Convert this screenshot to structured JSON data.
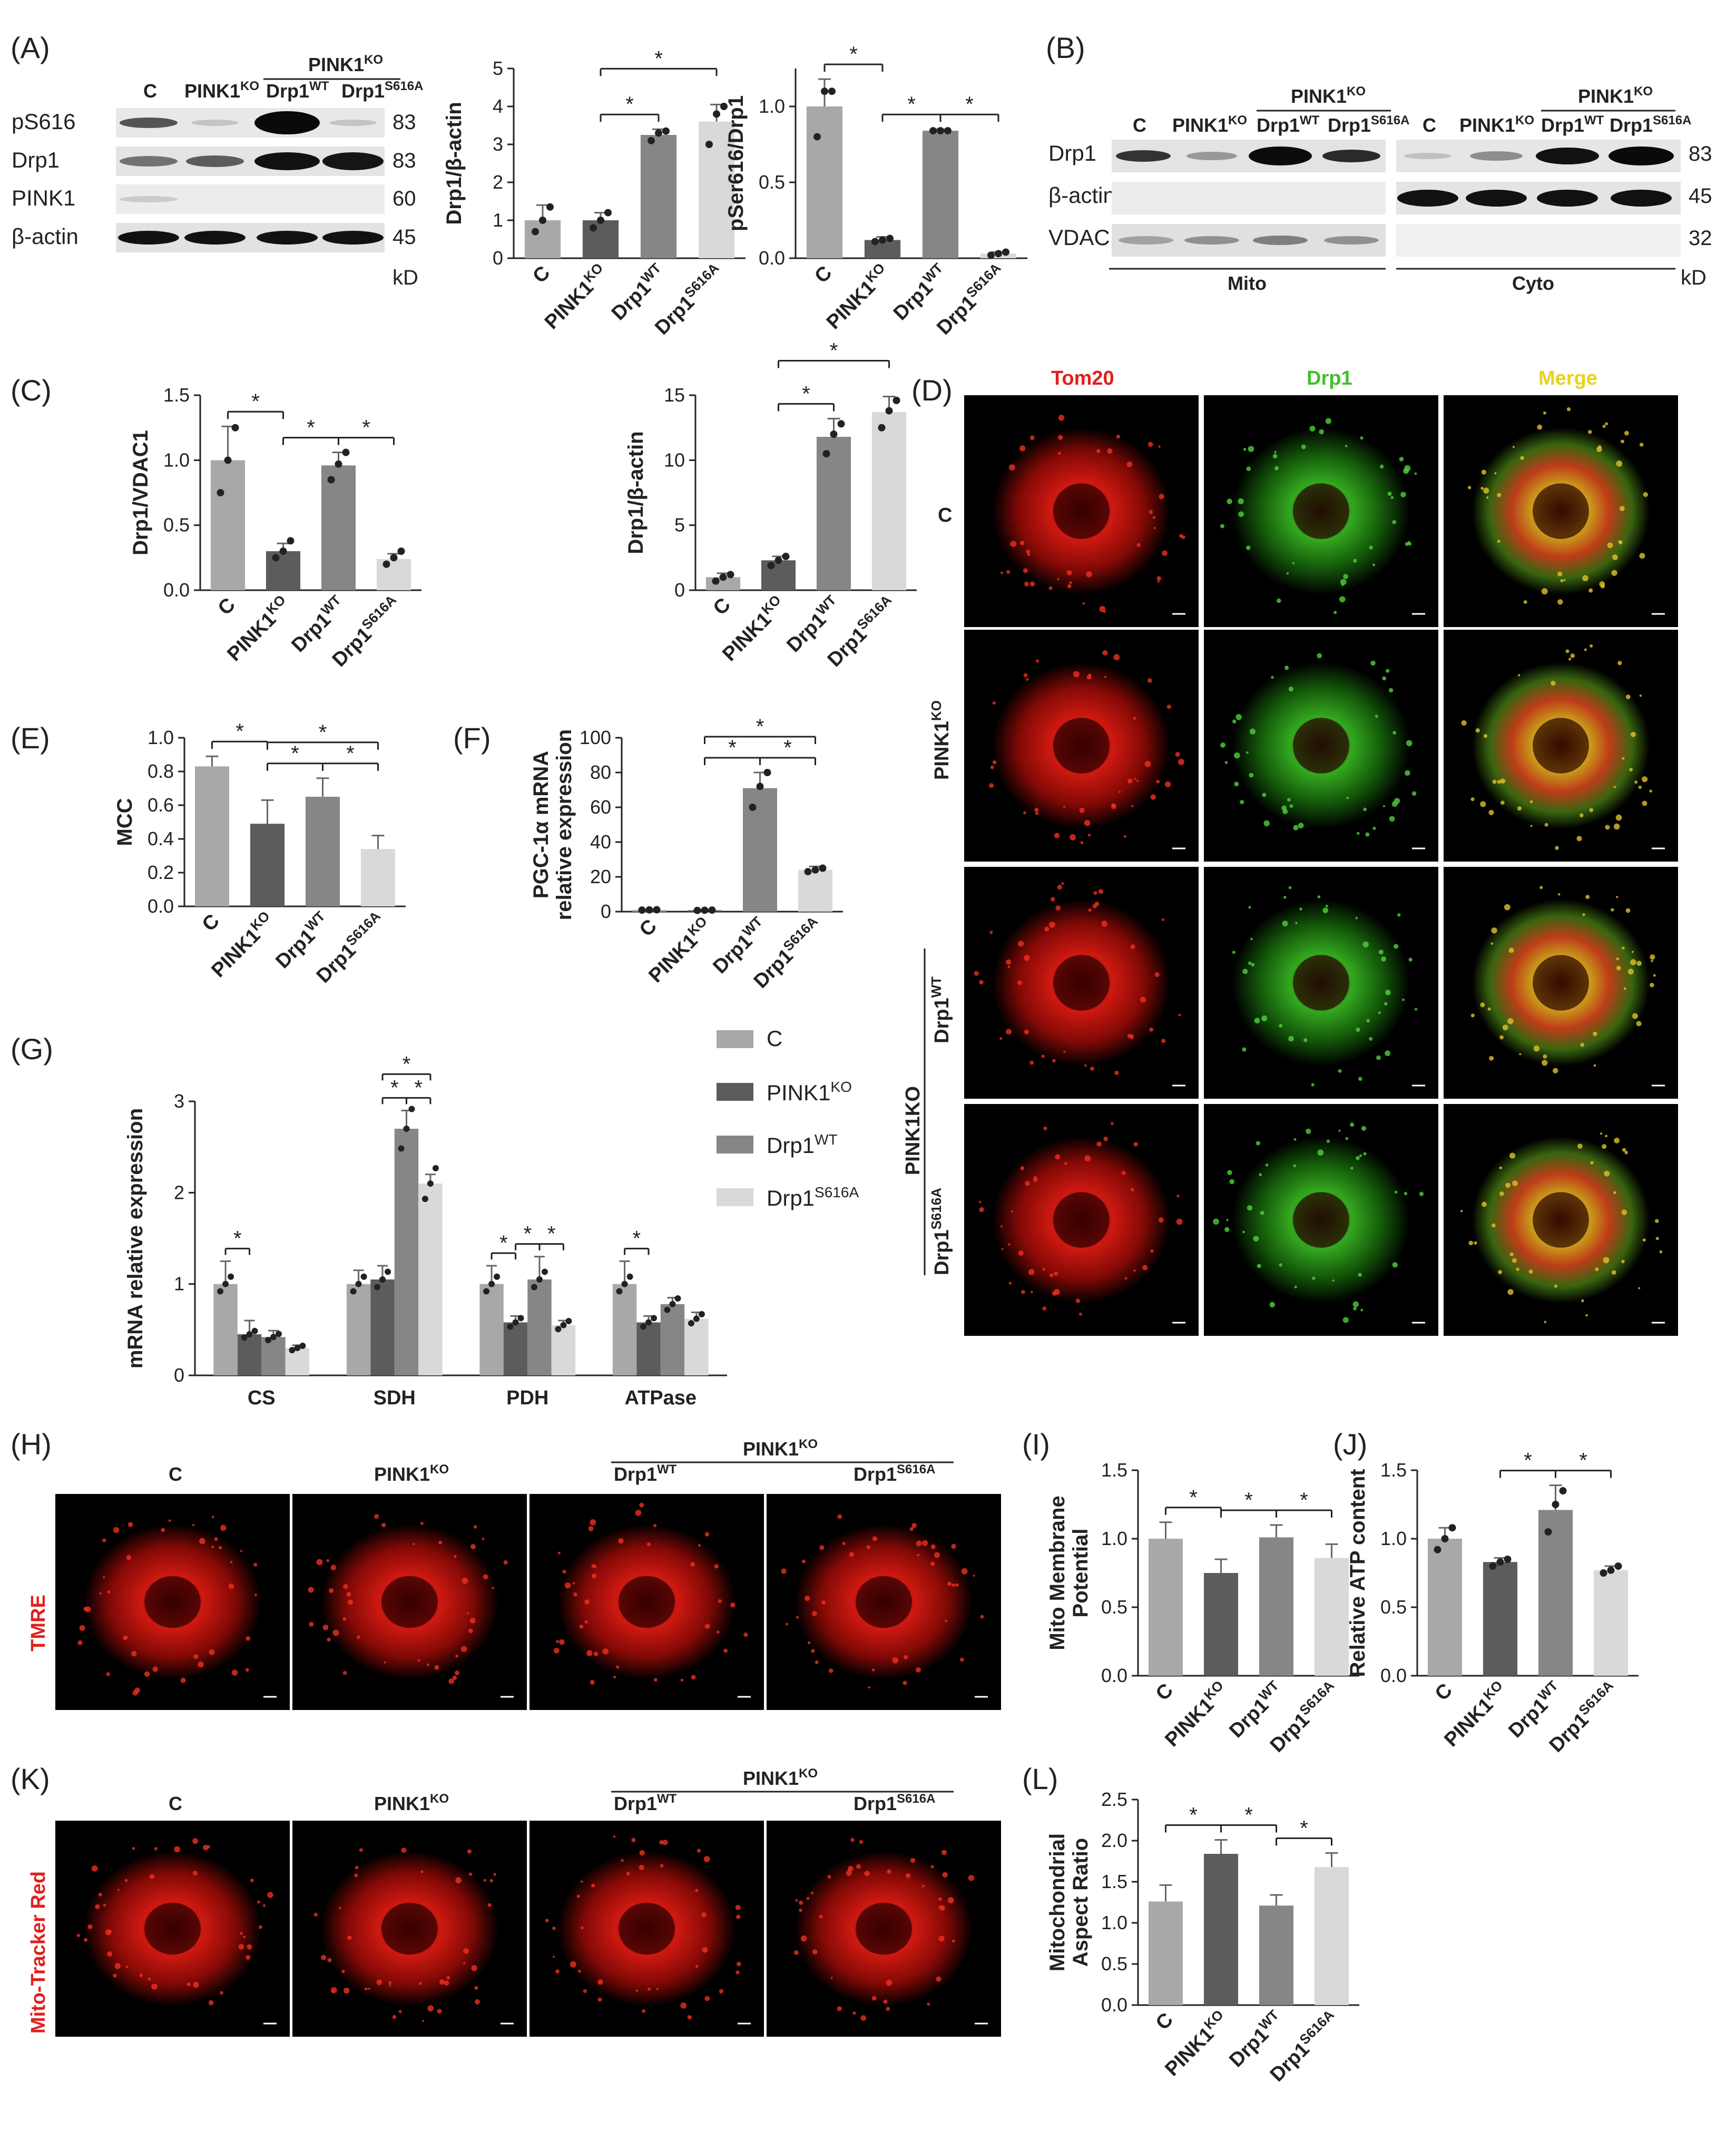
{
  "labels": {
    "A": "(A)",
    "B": "(B)",
    "C": "(C)",
    "D": "(D)",
    "E": "(E)",
    "F": "(F)",
    "G": "(G)",
    "H": "(H)",
    "I": "(I)",
    "J": "(J)",
    "K": "(K)",
    "L": "(L)"
  },
  "groups": {
    "C": "C",
    "PINK1": "PINK1",
    "KO": "KO",
    "Drp1": "Drp1",
    "WT": "WT",
    "S616A": "S616A",
    "PINK1KO": "PINK1KO",
    "Drp1WT": "Drp1WT",
    "Drp1S616A": "Drp1S616A"
  },
  "blotA": {
    "rows": [
      {
        "name": "pS616",
        "kd": "83"
      },
      {
        "name": "Drp1",
        "kd": "83"
      },
      {
        "name": "PINK1",
        "kd": "60"
      },
      {
        "name": "β-actin",
        "kd": "45"
      }
    ],
    "kd_label": "kD"
  },
  "blotB": {
    "rows": [
      {
        "name": "Drp1",
        "kd": "83"
      },
      {
        "name": "β-actin",
        "kd": "45"
      },
      {
        "name": "VDAC1",
        "kd": "32"
      }
    ],
    "fractions": [
      "Mito",
      "Cyto"
    ],
    "kd_label": "kD"
  },
  "microscopyD": {
    "columns": [
      "Tom20",
      "Drp1",
      "Merge"
    ],
    "rows": [
      "C",
      "PINK1KO",
      "Drp1WT",
      "Drp1S616A"
    ],
    "group_label": "PINK1KO"
  },
  "microscopyH": {
    "stain": "TMRE",
    "group_label": "PINK1KO",
    "columns": [
      "C",
      "PINK1KO",
      "Drp1WT",
      "Drp1S616A"
    ]
  },
  "microscopyK": {
    "stain": "Mito-Tracker Red",
    "group_label": "PINK1KO",
    "columns": [
      "C",
      "PINK1KO",
      "Drp1WT",
      "Drp1S616A"
    ]
  },
  "chart_data": [
    {
      "id": "A1",
      "type": "bar",
      "categories": [
        "C",
        "PINK1KO",
        "Drp1WT",
        "Drp1S616A"
      ],
      "values": [
        1.0,
        1.0,
        3.25,
        3.6
      ],
      "errors": [
        0.4,
        0.2,
        0.15,
        0.45
      ],
      "points": [
        [
          0.7,
          1.0,
          1.35
        ],
        [
          0.8,
          1.0,
          1.2
        ],
        [
          3.1,
          3.3,
          3.35
        ],
        [
          3.0,
          3.8,
          4.0
        ]
      ],
      "ylabel": "Drp1/β-actin",
      "ylim": [
        0,
        5
      ],
      "yticks": [
        0,
        1,
        2,
        3,
        4,
        5
      ],
      "sig": [
        [
          1,
          2
        ],
        [
          1,
          3
        ]
      ]
    },
    {
      "id": "A2",
      "type": "bar",
      "categories": [
        "C",
        "PINK1KO",
        "Drp1WT",
        "Drp1S616A"
      ],
      "values": [
        1.0,
        0.12,
        0.84,
        0.03
      ],
      "errors": [
        0.18,
        0.02,
        0.01,
        0.01
      ],
      "points": [
        [
          0.8,
          1.1,
          1.1
        ],
        [
          0.11,
          0.12,
          0.13
        ],
        [
          0.84,
          0.84,
          0.84
        ],
        [
          0.02,
          0.03,
          0.04
        ]
      ],
      "ylabel": "pSer616/Drp1",
      "ylim": [
        0,
        1.25
      ],
      "yticks": [
        0.0,
        0.5,
        1.0
      ],
      "sig": [
        [
          0,
          1
        ],
        [
          1,
          2
        ],
        [
          2,
          3
        ]
      ]
    },
    {
      "id": "C1",
      "type": "bar",
      "categories": [
        "C",
        "PINK1KO",
        "Drp1WT",
        "Drp1S616A"
      ],
      "values": [
        1.0,
        0.3,
        0.96,
        0.24
      ],
      "errors": [
        0.26,
        0.06,
        0.1,
        0.04
      ],
      "points": [
        [
          0.75,
          1.0,
          1.25
        ],
        [
          0.25,
          0.3,
          0.38
        ],
        [
          0.85,
          0.97,
          1.06
        ],
        [
          0.2,
          0.25,
          0.3
        ]
      ],
      "ylabel": "Drp1/VDAC1",
      "ylim": [
        0,
        1.5
      ],
      "yticks": [
        0.0,
        0.5,
        1.0,
        1.5
      ],
      "sig": [
        [
          0,
          1
        ],
        [
          1,
          2
        ],
        [
          2,
          3
        ]
      ]
    },
    {
      "id": "C2",
      "type": "bar",
      "categories": [
        "C",
        "PINK1KO",
        "Drp1WT",
        "Drp1S616A"
      ],
      "values": [
        1.0,
        2.3,
        11.8,
        13.7
      ],
      "errors": [
        0.3,
        0.3,
        1.4,
        1.2
      ],
      "points": [
        [
          0.7,
          1.0,
          1.2
        ],
        [
          1.9,
          2.3,
          2.6
        ],
        [
          10.5,
          12.0,
          12.8
        ],
        [
          12.5,
          13.8,
          14.6
        ]
      ],
      "ylabel": "Drp1/β-actin",
      "ylim": [
        0,
        15
      ],
      "yticks": [
        0,
        5,
        10,
        15
      ],
      "sig": [
        [
          1,
          2
        ],
        [
          1,
          3
        ]
      ]
    },
    {
      "id": "E",
      "type": "bar",
      "categories": [
        "C",
        "PINK1KO",
        "Drp1WT",
        "Drp1S616A"
      ],
      "values": [
        0.83,
        0.49,
        0.65,
        0.34
      ],
      "errors": [
        0.06,
        0.14,
        0.11,
        0.08
      ],
      "points": [],
      "ylabel": "MCC",
      "ylim": [
        0,
        1.0
      ],
      "yticks": [
        0.0,
        0.2,
        0.4,
        0.6,
        0.8,
        1.0
      ],
      "sig": [
        [
          0,
          1
        ],
        [
          1,
          2
        ],
        [
          2,
          3
        ],
        [
          1,
          3
        ]
      ]
    },
    {
      "id": "F",
      "type": "bar",
      "categories": [
        "C",
        "PINK1KO",
        "Drp1WT",
        "Drp1S616A"
      ],
      "values": [
        1.0,
        0.8,
        71,
        24
      ],
      "errors": [
        0.2,
        0.2,
        9,
        2
      ],
      "points": [
        [
          0.9,
          1.0,
          1.1
        ],
        [
          0.7,
          0.8,
          0.9
        ],
        [
          60,
          72,
          80
        ],
        [
          23,
          24,
          25
        ]
      ],
      "ylabel": "PGC-1α mRNA relative expression",
      "ylim": [
        0,
        100
      ],
      "yticks": [
        0,
        20,
        40,
        60,
        80,
        100
      ],
      "sig": [
        [
          1,
          2
        ],
        [
          2,
          3
        ],
        [
          1,
          3
        ]
      ]
    },
    {
      "id": "G",
      "type": "grouped-bar",
      "categories": [
        "CS",
        "SDH",
        "PDH",
        "ATPase"
      ],
      "series": [
        {
          "name": "C",
          "values": [
            1.0,
            1.0,
            1.0,
            1.0
          ],
          "errors": [
            0.25,
            0.15,
            0.2,
            0.25
          ]
        },
        {
          "name": "PINK1KO",
          "values": [
            0.45,
            1.05,
            0.58,
            0.58
          ],
          "errors": [
            0.15,
            0.15,
            0.07,
            0.07
          ]
        },
        {
          "name": "Drp1WT",
          "values": [
            0.42,
            2.7,
            1.05,
            0.78
          ],
          "errors": [
            0.07,
            0.2,
            0.25,
            0.07
          ]
        },
        {
          "name": "Drp1S616A",
          "values": [
            0.3,
            2.1,
            0.55,
            0.62
          ],
          "errors": [
            0.03,
            0.1,
            0.05,
            0.07
          ]
        }
      ],
      "ylabel": "mRNA relative expression",
      "ylim": [
        0,
        3
      ],
      "yticks": [
        0,
        1,
        2,
        3
      ],
      "sig": [
        {
          "cat": 0,
          "pairs": [
            [
              0,
              1
            ]
          ]
        },
        {
          "cat": 1,
          "pairs": [
            [
              1,
              2
            ],
            [
              2,
              3
            ],
            [
              1,
              3
            ]
          ]
        },
        {
          "cat": 2,
          "pairs": [
            [
              0,
              1
            ],
            [
              1,
              2
            ],
            [
              2,
              3
            ]
          ]
        },
        {
          "cat": 3,
          "pairs": [
            [
              0,
              1
            ]
          ]
        }
      ]
    },
    {
      "id": "I",
      "type": "bar",
      "categories": [
        "C",
        "PINK1KO",
        "Drp1WT",
        "Drp1S616A"
      ],
      "values": [
        1.0,
        0.75,
        1.01,
        0.86
      ],
      "errors": [
        0.12,
        0.1,
        0.09,
        0.1
      ],
      "points": [],
      "ylabel": "Mito Membrane Potential",
      "ylim": [
        0,
        1.5
      ],
      "yticks": [
        0.0,
        0.5,
        1.0,
        1.5
      ],
      "sig": [
        [
          0,
          1
        ],
        [
          1,
          2
        ],
        [
          2,
          3
        ]
      ]
    },
    {
      "id": "J",
      "type": "bar",
      "categories": [
        "C",
        "PINK1KO",
        "Drp1WT",
        "Drp1S616A"
      ],
      "values": [
        1.0,
        0.83,
        1.21,
        0.77
      ],
      "errors": [
        0.08,
        0.03,
        0.18,
        0.03
      ],
      "points": [
        [
          0.92,
          1.0,
          1.08
        ],
        [
          0.8,
          0.83,
          0.85
        ],
        [
          1.05,
          1.25,
          1.35
        ],
        [
          0.75,
          0.77,
          0.8
        ]
      ],
      "ylabel": "Relative ATP content",
      "ylim": [
        0,
        1.5
      ],
      "yticks": [
        0.0,
        0.5,
        1.0,
        1.5
      ],
      "sig": [
        [
          1,
          2
        ],
        [
          2,
          3
        ]
      ]
    },
    {
      "id": "L",
      "type": "bar",
      "categories": [
        "C",
        "PINK1KO",
        "Drp1WT",
        "Drp1S616A"
      ],
      "values": [
        1.26,
        1.84,
        1.21,
        1.68
      ],
      "errors": [
        0.2,
        0.17,
        0.13,
        0.17
      ],
      "points": [],
      "ylabel": "Mitochondrial Aspect Ratio",
      "ylim": [
        0,
        2.5
      ],
      "yticks": [
        0.0,
        0.5,
        1.0,
        1.5,
        2.0,
        2.5
      ],
      "sig": [
        [
          0,
          1
        ],
        [
          1,
          2
        ],
        [
          2,
          3
        ]
      ]
    }
  ],
  "colors": {
    "C": "#a8a8a8",
    "PINK1KO": "#5c5c5c",
    "Drp1WT": "#868686",
    "Drp1S616A": "#d9d9d9",
    "red": "#e0201c",
    "green": "#3fbf2a",
    "yellow": "#e8d21a"
  }
}
